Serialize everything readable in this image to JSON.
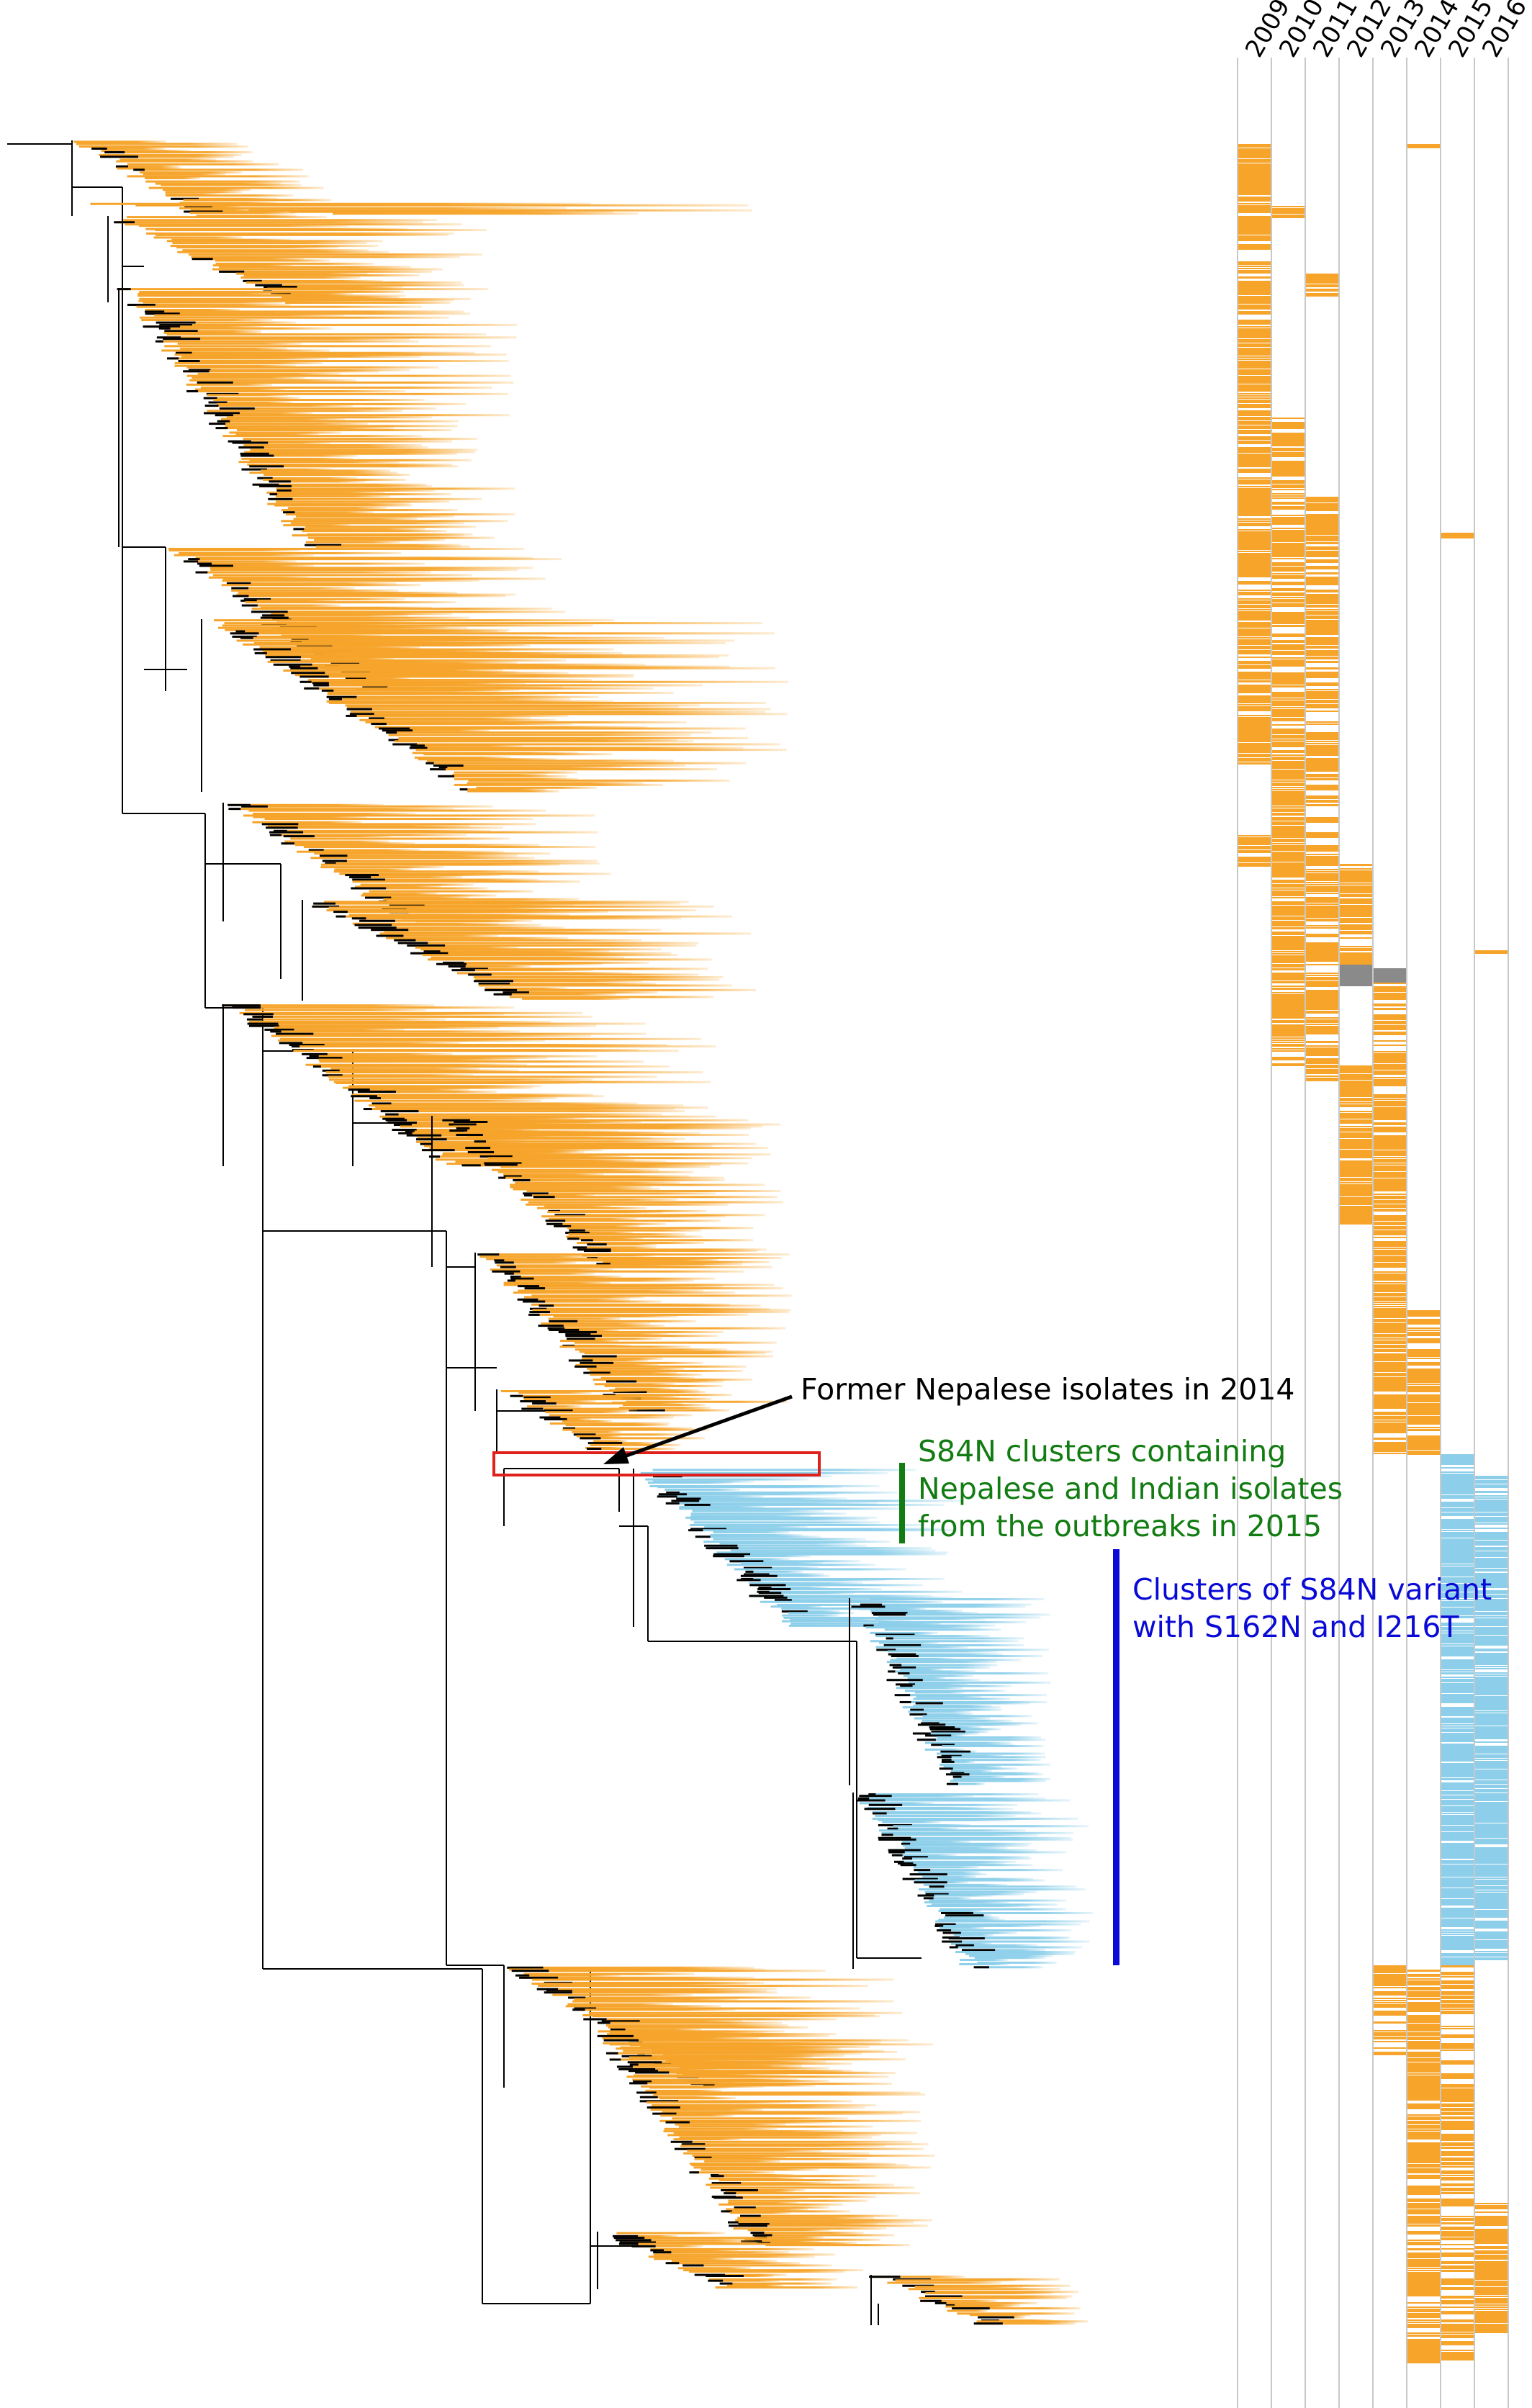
{
  "figure": {
    "years": [
      "2009",
      "2010",
      "2011",
      "2012",
      "2013",
      "2014",
      "2015",
      "2016"
    ],
    "colors": {
      "prior_lineage": "#f6a42a",
      "s84n_lineage": "#8dcfea",
      "ancestral_branch": "#000000",
      "nepal_2014_box": "#e0201b",
      "nepal_india_2015_bar": "#127c12",
      "s84n_variant_bar": "#0a0ad6"
    },
    "annotations": {
      "nepal_2014": "Former Nepalese isolates in 2014",
      "nepal_india_2015": [
        "S84N clusters containing",
        "Nepalese and Indian isolates",
        "from the outbreaks in 2015"
      ],
      "s84n_variant": [
        "Clusters of S84N variant",
        "with S162N and I216T"
      ]
    }
  }
}
